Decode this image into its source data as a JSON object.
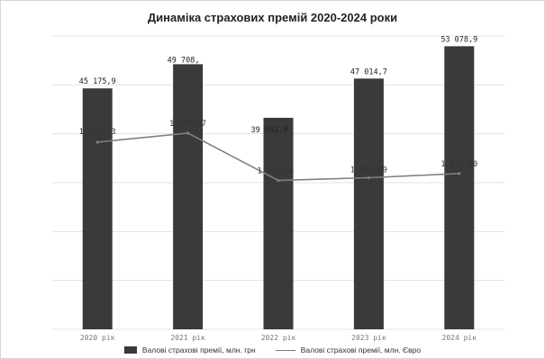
{
  "chart_data": {
    "type": "bar",
    "title": "Динаміка страхових премій 2020-2024 роки",
    "categories": [
      "2020 рік",
      "2021 рік",
      "2022 рік",
      "2023 рік",
      "2024 рік"
    ],
    "series": [
      {
        "name": "Валові страхові премії, млн. грн",
        "type": "bar",
        "values": [
          45175.9,
          49708.0,
          39661.0,
          47014.7,
          53078.9
        ],
        "labels": [
          "45 175,9",
          "49 708,",
          "39 661,0",
          "47 014,7",
          "53 078,9"
        ],
        "ylim": [
          0,
          55000
        ]
      },
      {
        "name": "Валові страхові премії, млн. Євро",
        "type": "line",
        "values": [
          1467.23,
          1538.47,
          1167.14,
          1188.49,
          1221.0
        ],
        "labels": [
          "1 467,23",
          "1 538,47",
          "1 167,14",
          "1 188,49",
          "1 221,00"
        ],
        "ylim": [
          0,
          2300
        ]
      }
    ],
    "grid": true,
    "legend_position": "bottom",
    "colors": {
      "bar": "#3a3a3a",
      "line": "#808080",
      "grid": "#e3e3e3"
    }
  }
}
